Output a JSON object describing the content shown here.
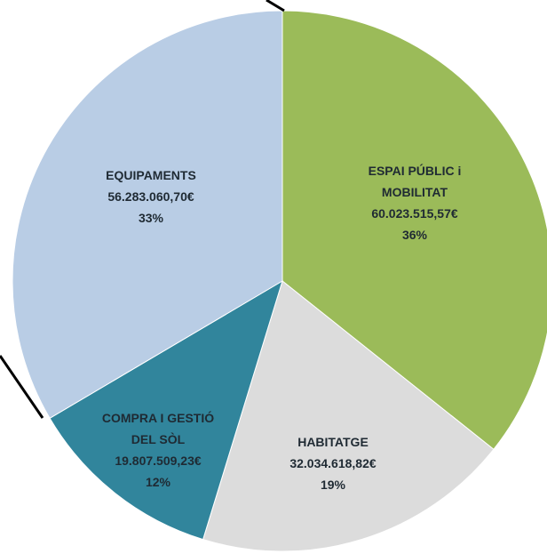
{
  "chart_data": {
    "type": "pie",
    "categories": [
      "ESPAI PÚBLIC i MOBILITAT",
      "HABITATGE",
      "COMPRA I GESTIÓ DEL SÒL",
      "EQUIPAMENTS"
    ],
    "values": [
      60023515.57,
      32034618.82,
      19807509.23,
      56283060.7
    ],
    "value_labels": [
      "60.023.515,57€",
      "32.034.618,82€",
      "19.807.509,23€",
      "56.283.060,70€"
    ],
    "percent_labels": [
      "36%",
      "19%",
      "12%",
      "33%"
    ],
    "colors": [
      "#9bbb59",
      "#dcdcdc",
      "#31859c",
      "#b9cde5"
    ]
  }
}
